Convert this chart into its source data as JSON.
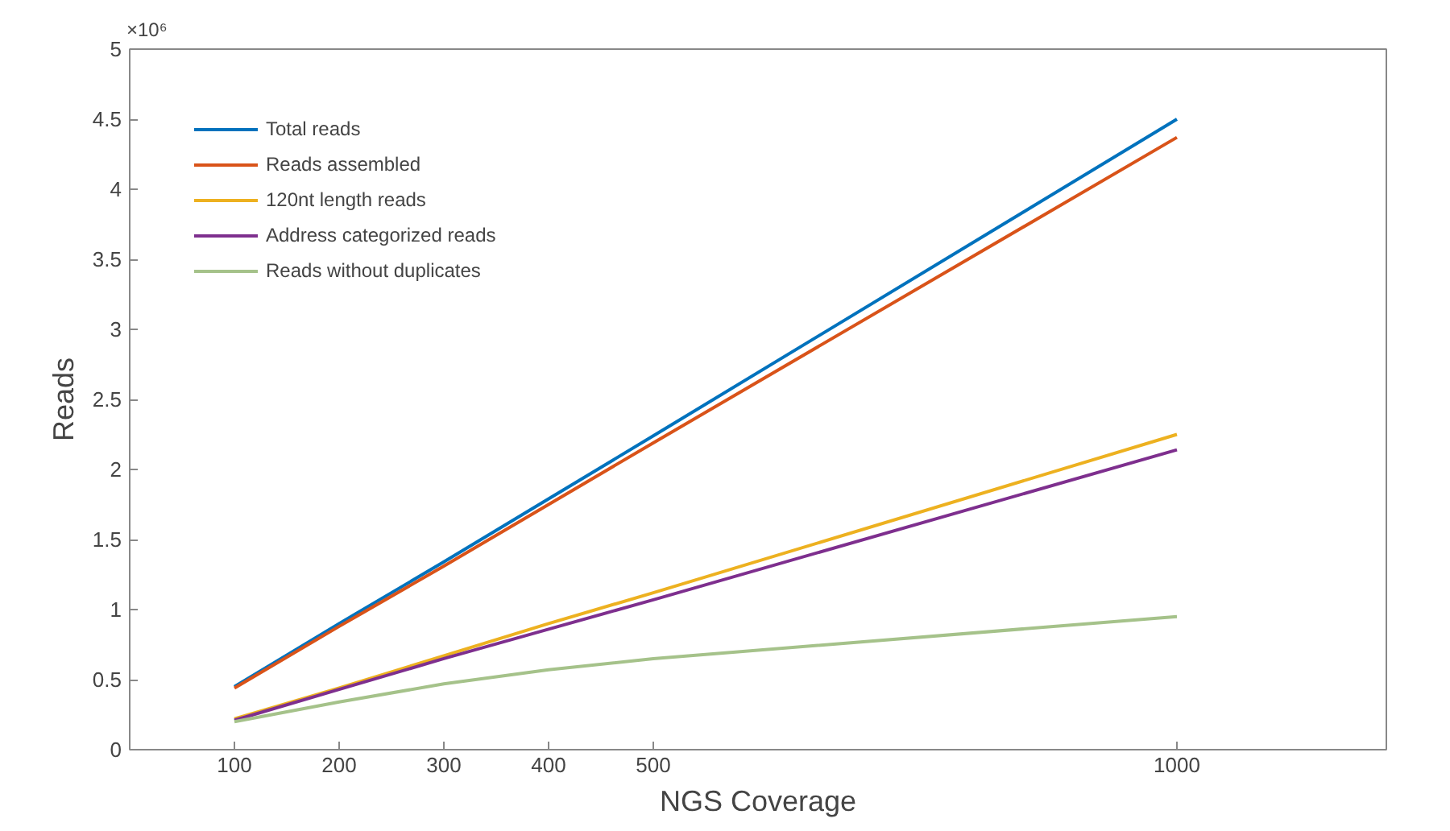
{
  "chart_data": {
    "type": "line",
    "xlabel": "NGS Coverage",
    "ylabel": "Reads",
    "annotations": [
      "×10⁶"
    ],
    "x": [
      100,
      200,
      300,
      400,
      500,
      1000
    ],
    "series": [
      {
        "name": "Total reads",
        "color": "#0072bd",
        "values": [
          0.45,
          0.9,
          1.34,
          1.79,
          2.24,
          4.5
        ]
      },
      {
        "name": "Reads assembled",
        "color": "#d95319",
        "values": [
          0.44,
          0.88,
          1.31,
          1.75,
          2.19,
          4.37
        ]
      },
      {
        "name": "120nt length reads",
        "color": "#edb120",
        "values": [
          0.22,
          0.44,
          0.67,
          0.9,
          1.12,
          2.25
        ]
      },
      {
        "name": "Address categorized reads",
        "color": "#7e2f8e",
        "values": [
          0.21,
          0.43,
          0.65,
          0.86,
          1.07,
          2.14
        ]
      },
      {
        "name": "Reads without duplicates",
        "color": "#a5c28a",
        "values": [
          0.2,
          0.34,
          0.47,
          0.57,
          0.65,
          0.95
        ]
      }
    ],
    "xlim": [
      0,
      1200
    ],
    "xticks": [
      100,
      200,
      300,
      400,
      500,
      1000
    ],
    "ylim": [
      0,
      5
    ],
    "yticks": [
      0,
      0.5,
      1,
      1.5,
      2,
      2.5,
      3,
      3.5,
      4,
      4.5,
      5
    ],
    "grid": false,
    "legend": "top left",
    "marker": "none",
    "line_style": "solid"
  }
}
